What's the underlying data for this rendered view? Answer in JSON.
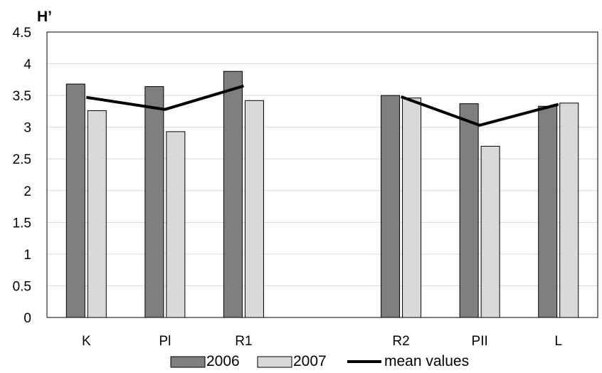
{
  "chart_data": {
    "type": "bar",
    "title": "",
    "ylabel": "H’",
    "xlabel": "",
    "ylim": [
      0,
      4.5
    ],
    "yticks": [
      "0",
      "0.5",
      "1",
      "1.5",
      "2",
      "2.5",
      "3",
      "3.5",
      "4",
      "4.5"
    ],
    "grid": true,
    "legend_position": "bottom",
    "categories": [
      "K",
      "Pl",
      "R1",
      "",
      "R2",
      "PII",
      "L"
    ],
    "series": [
      {
        "name": "2006",
        "kind": "bar",
        "color": "#7f7f7f",
        "values": [
          3.68,
          3.64,
          3.88,
          null,
          3.5,
          3.37,
          3.33
        ]
      },
      {
        "name": "2007",
        "kind": "bar",
        "color": "#d9d9d9",
        "values": [
          3.26,
          2.93,
          3.42,
          null,
          3.46,
          2.7,
          3.38
        ]
      },
      {
        "name": "mean values",
        "kind": "line",
        "color": "#000000",
        "values": [
          3.47,
          3.28,
          3.65,
          null,
          3.48,
          3.03,
          3.36
        ]
      }
    ]
  }
}
